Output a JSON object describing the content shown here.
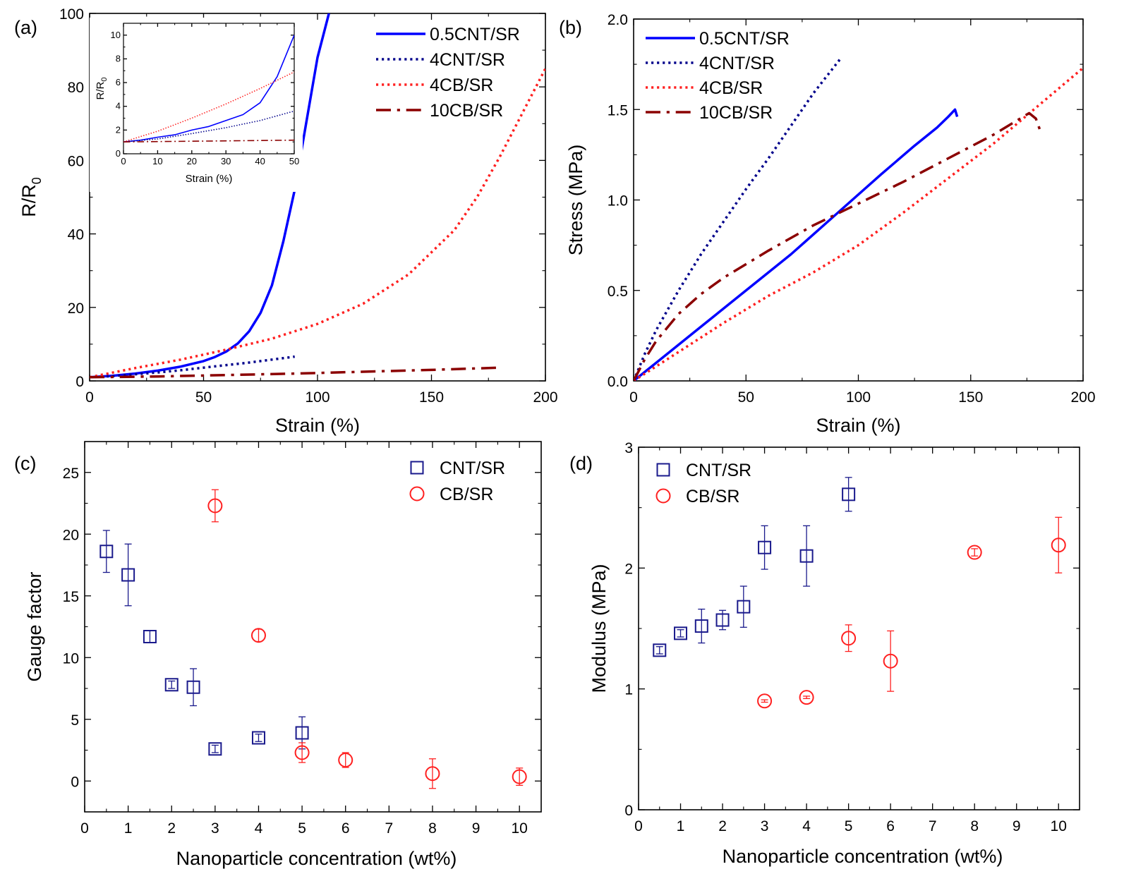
{
  "chart_data": [
    {
      "panel": "(a)",
      "type": "line",
      "xlabel": "Strain (%)",
      "ylabel": "R/R0",
      "ylabel_main": "R/R",
      "ylabel_sub": "0",
      "xlim": [
        0,
        200
      ],
      "ylim": [
        0,
        100
      ],
      "xticks": [
        0,
        50,
        100,
        150,
        200
      ],
      "yticks": [
        0,
        20,
        40,
        60,
        80,
        100
      ],
      "legend_position": "top-right",
      "series": [
        {
          "name": "0.5CNT/SR",
          "color": "#0000ff",
          "style": "solid",
          "x": [
            0,
            10,
            20,
            30,
            40,
            50,
            55,
            60,
            65,
            70,
            75,
            80,
            85,
            90,
            95,
            100,
            105
          ],
          "y": [
            1,
            1.4,
            2.0,
            2.8,
            3.9,
            5.4,
            6.5,
            8.0,
            10.2,
            13.5,
            18.5,
            26,
            38,
            52,
            70,
            88,
            100
          ]
        },
        {
          "name": "4CNT/SR",
          "color": "#00008b",
          "style": "dotted",
          "x": [
            0,
            10,
            20,
            30,
            40,
            50,
            60,
            70,
            80,
            90
          ],
          "y": [
            1,
            1.3,
            1.8,
            2.3,
            2.9,
            3.6,
            4.3,
            5.0,
            5.8,
            6.6
          ]
        },
        {
          "name": "4CB/SR",
          "color": "#ff2020",
          "style": "dotted",
          "x": [
            0,
            20,
            40,
            60,
            80,
            100,
            120,
            140,
            160,
            170,
            180,
            190,
            200
          ],
          "y": [
            1,
            3.5,
            5.8,
            8.5,
            11.5,
            15.5,
            21,
            29,
            41,
            50,
            61,
            73,
            85
          ]
        },
        {
          "name": "10CB/SR",
          "color": "#8b0000",
          "style": "dashdot",
          "x": [
            0,
            30,
            60,
            90,
            120,
            150,
            180
          ],
          "y": [
            1,
            1.2,
            1.6,
            2.0,
            2.5,
            3.0,
            3.6
          ]
        }
      ],
      "inset": {
        "xlabel": "Strain (%)",
        "ylabel": "R/R0",
        "ylabel_main": "R/R",
        "ylabel_sub": "0",
        "xlim": [
          0,
          50
        ],
        "ylim": [
          0,
          11
        ],
        "xticks": [
          0,
          10,
          20,
          30,
          40,
          50
        ],
        "yticks": [
          0,
          2,
          4,
          6,
          8,
          10
        ],
        "series": [
          {
            "name": "0.5CNT/SR",
            "color": "#0000ff",
            "style": "solid",
            "x": [
              0,
              5,
              10,
              15,
              20,
              25,
              30,
              35,
              40,
              45,
              50
            ],
            "y": [
              1,
              1.15,
              1.4,
              1.6,
              2.0,
              2.3,
              2.8,
              3.3,
              4.3,
              6.5,
              10
            ]
          },
          {
            "name": "4CNT/SR",
            "color": "#00008b",
            "style": "dotted",
            "x": [
              0,
              10,
              20,
              30,
              40,
              50
            ],
            "y": [
              1,
              1.25,
              1.7,
              2.2,
              2.8,
              3.6
            ]
          },
          {
            "name": "4CB/SR",
            "color": "#ff2020",
            "style": "dotted",
            "x": [
              0,
              10,
              20,
              30,
              40,
              50
            ],
            "y": [
              1,
              1.9,
              3.0,
              4.2,
              5.5,
              6.9
            ]
          },
          {
            "name": "10CB/SR",
            "color": "#8b0000",
            "style": "dashdot",
            "x": [
              0,
              50
            ],
            "y": [
              1,
              1.15
            ]
          }
        ]
      }
    },
    {
      "panel": "(b)",
      "type": "line",
      "xlabel": "Strain (%)",
      "ylabel": "Stress (MPa)",
      "xlim": [
        0,
        200
      ],
      "ylim": [
        0,
        2.0
      ],
      "xticks": [
        0,
        50,
        100,
        150,
        200
      ],
      "yticks": [
        0.0,
        0.5,
        1.0,
        1.5,
        2.0
      ],
      "ytick_labels": [
        "0.0",
        "0.5",
        "1.0",
        "1.5",
        "2.0"
      ],
      "legend_position": "top-left",
      "series": [
        {
          "name": "0.5CNT/SR",
          "color": "#0000ff",
          "style": "solid",
          "x": [
            0,
            10,
            30,
            50,
            70,
            90,
            110,
            125,
            135,
            140,
            143,
            144
          ],
          "y": [
            0,
            0.1,
            0.3,
            0.5,
            0.7,
            0.92,
            1.14,
            1.3,
            1.4,
            1.46,
            1.5,
            1.46
          ]
        },
        {
          "name": "4CNT/SR",
          "color": "#00008b",
          "style": "dotted",
          "x": [
            0,
            5,
            10,
            20,
            30,
            40,
            50,
            60,
            70,
            80,
            92
          ],
          "y": [
            0,
            0.15,
            0.28,
            0.5,
            0.7,
            0.88,
            1.06,
            1.23,
            1.41,
            1.59,
            1.78
          ]
        },
        {
          "name": "4CB/SR",
          "color": "#ff2020",
          "style": "dotted",
          "x": [
            0,
            20,
            40,
            60,
            80,
            100,
            120,
            140,
            160,
            180,
            200
          ],
          "y": [
            0,
            0.16,
            0.32,
            0.47,
            0.6,
            0.75,
            0.93,
            1.12,
            1.31,
            1.52,
            1.73
          ]
        },
        {
          "name": "10CB/SR",
          "color": "#8b0000",
          "style": "dashdot",
          "x": [
            0,
            5,
            10,
            20,
            30,
            40,
            60,
            80,
            100,
            120,
            140,
            160,
            176,
            179,
            181
          ],
          "y": [
            0,
            0.12,
            0.22,
            0.37,
            0.48,
            0.57,
            0.72,
            0.86,
            0.98,
            1.1,
            1.23,
            1.36,
            1.48,
            1.45,
            1.38
          ]
        }
      ]
    },
    {
      "panel": "(c)",
      "type": "scatter",
      "xlabel": "Nanoparticle concentration (wt%)",
      "ylabel": "Gauge factor",
      "xlim": [
        0,
        10.5
      ],
      "ylim": [
        -2.5,
        27.5
      ],
      "xticks": [
        0,
        1,
        2,
        3,
        4,
        5,
        6,
        7,
        8,
        9,
        10
      ],
      "yticks": [
        0,
        5,
        10,
        15,
        20,
        25
      ],
      "legend_position": "top-right",
      "series": [
        {
          "name": "CNT/SR",
          "color": "#1a1a8c",
          "marker": "square",
          "x": [
            0.5,
            1,
            1.5,
            2,
            2.5,
            3,
            4,
            5
          ],
          "y": [
            18.6,
            16.7,
            11.7,
            7.8,
            7.6,
            2.6,
            3.5,
            3.9
          ],
          "err": [
            1.7,
            2.5,
            0.5,
            0.3,
            1.5,
            0.3,
            0.3,
            1.3
          ]
        },
        {
          "name": "CB/SR",
          "color": "#ff2020",
          "marker": "circle",
          "x": [
            3,
            4,
            5,
            6,
            8,
            10
          ],
          "y": [
            22.3,
            11.8,
            2.3,
            1.7,
            0.6,
            0.35
          ],
          "err": [
            1.3,
            0.5,
            0.8,
            0.6,
            1.2,
            0.7
          ]
        }
      ]
    },
    {
      "panel": "(d)",
      "type": "scatter",
      "xlabel": "Nanoparticle concentration (wt%)",
      "ylabel": "Modulus (MPa)",
      "xlim": [
        0,
        10.5
      ],
      "ylim": [
        0,
        3
      ],
      "xticks": [
        0,
        1,
        2,
        3,
        4,
        5,
        6,
        7,
        8,
        9,
        10
      ],
      "yticks": [
        0,
        1,
        2,
        3
      ],
      "legend_position": "top-left",
      "series": [
        {
          "name": "CNT/SR",
          "color": "#1a1a8c",
          "marker": "square",
          "x": [
            0.5,
            1,
            1.5,
            2,
            2.5,
            3,
            4,
            5
          ],
          "y": [
            1.32,
            1.46,
            1.52,
            1.57,
            1.68,
            2.17,
            2.1,
            2.61
          ],
          "err": [
            0.03,
            0.03,
            0.14,
            0.08,
            0.17,
            0.18,
            0.25,
            0.14
          ]
        },
        {
          "name": "CB/SR",
          "color": "#ff2020",
          "marker": "circle",
          "x": [
            3,
            4,
            5,
            6,
            8,
            10
          ],
          "y": [
            0.9,
            0.93,
            1.42,
            1.23,
            2.13,
            2.19
          ],
          "err": [
            0.01,
            0.01,
            0.11,
            0.25,
            0.03,
            0.23
          ]
        }
      ]
    }
  ]
}
